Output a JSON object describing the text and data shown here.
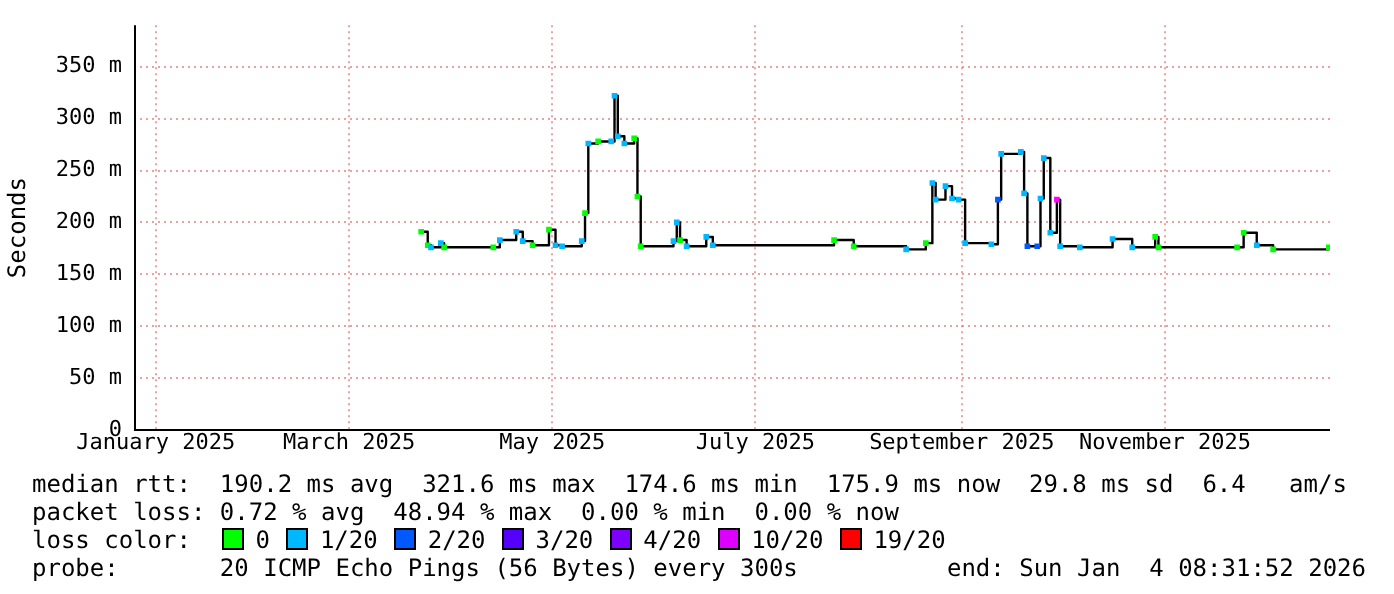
{
  "chart_data": {
    "type": "step",
    "ylabel": "Seconds",
    "xlim": [
      "2025-01-04T08:31",
      "2026-01-04T08:31"
    ],
    "xticks": [
      {
        "value": "2025-01-11",
        "label": "January 2025"
      },
      {
        "value": "2025-03-11",
        "label": "March 2025"
      },
      {
        "value": "2025-05-12",
        "label": "May 2025"
      },
      {
        "value": "2025-07-13",
        "label": "July 2025"
      },
      {
        "value": "2025-09-14",
        "label": "September 2025"
      },
      {
        "value": "2025-11-15",
        "label": "November 2025"
      }
    ],
    "ylim": [
      0,
      390
    ],
    "yticks": [
      {
        "value": 0,
        "label": "0"
      },
      {
        "value": 50,
        "label": "50 m"
      },
      {
        "value": 100,
        "label": "100 m"
      },
      {
        "value": 150,
        "label": "150 m"
      },
      {
        "value": 200,
        "label": "200 m"
      },
      {
        "value": 250,
        "label": "250 m"
      },
      {
        "value": 300,
        "label": "300 m"
      },
      {
        "value": 350,
        "label": "350 m"
      }
    ],
    "grid": true,
    "legend": "bottom",
    "legend_title": "loss color:",
    "marker": "square",
    "series": [
      {
        "color": "#000000",
        "x": [
          "2025-04-02",
          "2025-04-04",
          "2025-04-05",
          "2025-04-08",
          "2025-04-09",
          "2025-04-24",
          "2025-04-26",
          "2025-05-01",
          "2025-05-03",
          "2025-05-06",
          "2025-05-11",
          "2025-05-13",
          "2025-05-15",
          "2025-05-21",
          "2025-05-22",
          "2025-05-23",
          "2025-05-26",
          "2025-05-30",
          "2025-05-31",
          "2025-06-01",
          "2025-06-03",
          "2025-06-06",
          "2025-06-07",
          "2025-06-08",
          "2025-06-18",
          "2025-06-19",
          "2025-06-20",
          "2025-06-22",
          "2025-06-28",
          "2025-06-30",
          "2025-08-06",
          "2025-08-12",
          "2025-08-28",
          "2025-09-03",
          "2025-09-05",
          "2025-09-06",
          "2025-09-09",
          "2025-09-11",
          "2025-09-13",
          "2025-09-15",
          "2025-09-23",
          "2025-09-25",
          "2025-09-26",
          "2025-10-02",
          "2025-10-03",
          "2025-10-04",
          "2025-10-07",
          "2025-10-08",
          "2025-10-09",
          "2025-10-11",
          "2025-10-13",
          "2025-10-14",
          "2025-10-20",
          "2025-10-30",
          "2025-11-05",
          "2025-11-12",
          "2025-11-13",
          "2025-12-07",
          "2025-12-09",
          "2025-12-13",
          "2025-12-18",
          "2026-01-04"
        ],
        "values": [
          191,
          178,
          176,
          180,
          176,
          176,
          183,
          191,
          182,
          178,
          193,
          178,
          177,
          182,
          209,
          276,
          278,
          278,
          322,
          283,
          276,
          281,
          225,
          177,
          182,
          200,
          183,
          177,
          186,
          178,
          183,
          177,
          174,
          180,
          238,
          222,
          235,
          223,
          222,
          180,
          179,
          222,
          266,
          268,
          228,
          177,
          177,
          223,
          262,
          190,
          222,
          177,
          176,
          184,
          176,
          186,
          176,
          176,
          190,
          178,
          174,
          176
        ],
        "colors": [
          "#00ff00",
          "#00ff00",
          "#00b8ff",
          "#00b8ff",
          "#00ff00",
          "#00ff00",
          "#00b8ff",
          "#00b8ff",
          "#00b8ff",
          "#00ff00",
          "#00ff00",
          "#00b8ff",
          "#00b8ff",
          "#00b8ff",
          "#00ff00",
          "#00b8ff",
          "#00ff00",
          "#00b8ff",
          "#00b8ff",
          "#00b8ff",
          "#00b8ff",
          "#00ff00",
          "#00ff00",
          "#00ff00",
          "#00b8ff",
          "#00b8ff",
          "#00ff00",
          "#00b8ff",
          "#00b8ff",
          "#00b8ff",
          "#00ff00",
          "#00ff00",
          "#00b8ff",
          "#00ff00",
          "#00b8ff",
          "#00b8ff",
          "#00b8ff",
          "#00b8ff",
          "#00b8ff",
          "#00b8ff",
          "#00b8ff",
          "#0059ff",
          "#00b8ff",
          "#00b8ff",
          "#00b8ff",
          "#0059ff",
          "#0059ff",
          "#00b8ff",
          "#00b8ff",
          "#00b8ff",
          "#ff00ff",
          "#00b8ff",
          "#00b8ff",
          "#00b8ff",
          "#00b8ff",
          "#00ff00",
          "#00ff00",
          "#00ff00",
          "#00ff00",
          "#00b8ff",
          "#00ff00",
          "#00ff00"
        ]
      },
      {
        "name": "0",
        "color": "#00ff00"
      },
      {
        "name": "1/20",
        "color": "#00b8ff"
      },
      {
        "name": "2/20",
        "color": "#0059ff"
      },
      {
        "name": "3/20",
        "color": "#5500ff"
      },
      {
        "name": "4/20",
        "color": "#7e00ff"
      },
      {
        "name": "10/20",
        "color": "#dd00ff"
      },
      {
        "name": "19/20",
        "color": "#ff0000"
      }
    ],
    "annotations": [
      "median rtt:  190.2 ms avg  321.6 ms max  174.6 ms min  175.9 ms now  29.8 ms sd  6.4   am/s",
      "packet loss: 0.72 % avg  48.94 % max  0.00 % min  0.00 % now",
      "probe:       20 ICMP Echo Pings (56 Bytes) every 300s",
      "end: Sun Jan  4 08:31:52 2026"
    ]
  }
}
